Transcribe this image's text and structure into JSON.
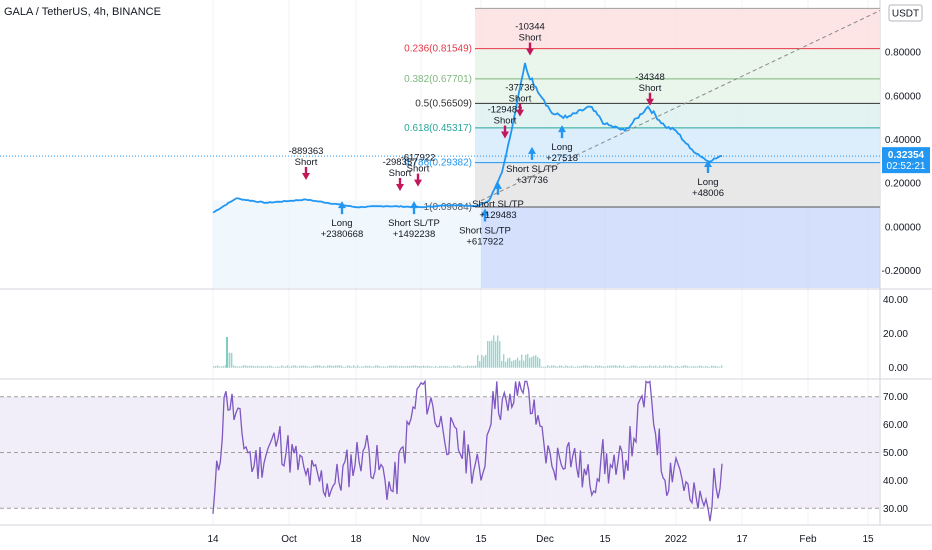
{
  "header": {
    "symbol": "GALA / TetherUS, 4h, BINANCE"
  },
  "price_axis": {
    "unit": "USDT",
    "ticks": [
      "0.80000",
      "0.60000",
      "0.40000",
      "0.20000",
      "0.00000",
      "-0.20000"
    ],
    "current_price": "0.32354",
    "countdown": "02:52:21"
  },
  "volume_pane": {
    "ticks": [
      "40.00",
      "20.00",
      "0.00"
    ]
  },
  "rsi_pane": {
    "ticks": [
      "70.00",
      "60.00",
      "50.00",
      "40.00",
      "30.00"
    ]
  },
  "time_axis": {
    "ticks": [
      "14",
      "Oct",
      "18",
      "Nov",
      "15",
      "Dec",
      "15",
      "2022",
      "17",
      "Feb",
      "15"
    ]
  },
  "fib_levels": [
    {
      "label": "0.236(0.81549)",
      "color": "#e63946"
    },
    {
      "label": "0.382(0.67701)",
      "color": "#7fb77e"
    },
    {
      "label": "0.5(0.56509)",
      "color": "#333333"
    },
    {
      "label": "0.618(0.45317)",
      "color": "#26a69a"
    },
    {
      "label": "0.786(0.29382)",
      "color": "#2196f3"
    },
    {
      "label": "1(0.09084)",
      "color": "#555555"
    }
  ],
  "trade_labels": [
    {
      "lines": [
        "-889363",
        "Short"
      ],
      "dir": "short"
    },
    {
      "lines": [
        "Long",
        "+2380668"
      ],
      "dir": "long"
    },
    {
      "lines": [
        "-298357",
        "Short"
      ],
      "dir": "short"
    },
    {
      "lines": [
        "-617922",
        "Short"
      ],
      "dir": "short"
    },
    {
      "lines": [
        "Short SL/TP",
        "+1492238"
      ],
      "dir": "long"
    },
    {
      "lines": [
        "Short SL/TP",
        "+617922"
      ],
      "dir": "long"
    },
    {
      "lines": [
        "Short SL/TP",
        "+129483"
      ],
      "dir": "long"
    },
    {
      "lines": [
        "-129483",
        "Short"
      ],
      "dir": "short"
    },
    {
      "lines": [
        "-37736",
        "Short"
      ],
      "dir": "short"
    },
    {
      "lines": [
        "Short SL/TP",
        "+37736"
      ],
      "dir": "long"
    },
    {
      "lines": [
        "-10344",
        "Short"
      ],
      "dir": "short"
    },
    {
      "lines": [
        "Long",
        "+27518"
      ],
      "dir": "long"
    },
    {
      "lines": [
        "-34348",
        "Short"
      ],
      "dir": "short"
    },
    {
      "lines": [
        "Long",
        "+48006"
      ],
      "dir": "long"
    }
  ],
  "colors": {
    "price_line": "#2196f3",
    "rsi_line": "#7e57c2",
    "short_arrow": "#c2185b",
    "long_arrow": "#2196f3",
    "trend_line": "#888888",
    "current_price_bg": "#2196f3"
  },
  "chart_data": [
    {
      "type": "line",
      "series": [
        {
          "name": "GALA / TetherUS",
          "x": [
            "Sep 14",
            "Sep 20",
            "Sep 28",
            "Oct 8",
            "Oct 18",
            "Oct 25",
            "Nov 1",
            "Nov 8",
            "Nov 14",
            "Nov 17",
            "Nov 20",
            "Nov 23",
            "Nov 25",
            "Nov 26",
            "Nov 28",
            "Nov 30",
            "Dec 2",
            "Dec 6",
            "Dec 10",
            "Dec 15",
            "Dec 20",
            "Dec 25",
            "Dec 28",
            "Jan 1",
            "Jan 4",
            "Jan 7",
            "Jan 9"
          ],
          "values": [
            0.065,
            0.13,
            0.11,
            0.125,
            0.09,
            0.095,
            0.09,
            0.1,
            0.095,
            0.12,
            0.25,
            0.45,
            0.75,
            0.7,
            0.64,
            0.58,
            0.52,
            0.5,
            0.55,
            0.47,
            0.44,
            0.55,
            0.46,
            0.44,
            0.36,
            0.3,
            0.32354
          ]
        }
      ],
      "ylim": [
        -0.28,
        1.02
      ]
    },
    {
      "type": "line",
      "series": [
        {
          "name": "RSI",
          "x": [
            "Sep 14",
            "Sep 18",
            "Sep 25",
            "Oct 1",
            "Oct 8",
            "Oct 14",
            "Oct 20",
            "Oct 26",
            "Nov 1",
            "Nov 6",
            "Nov 12",
            "Nov 15",
            "Nov 18",
            "Nov 22",
            "Nov 25",
            "Nov 28",
            "Dec 2",
            "Dec 6",
            "Dec 10",
            "Dec 14",
            "Dec 18",
            "Dec 22",
            "Dec 25",
            "Dec 28",
            "Jan 1",
            "Jan 4",
            "Jan 7",
            "Jan 9"
          ],
          "values": [
            28,
            72,
            45,
            55,
            42,
            38,
            52,
            36,
            75,
            58,
            48,
            40,
            72,
            65,
            78,
            60,
            45,
            52,
            38,
            48,
            42,
            55,
            75,
            40,
            48,
            33,
            30,
            46
          ]
        }
      ],
      "ylim": [
        24,
        76
      ]
    }
  ]
}
